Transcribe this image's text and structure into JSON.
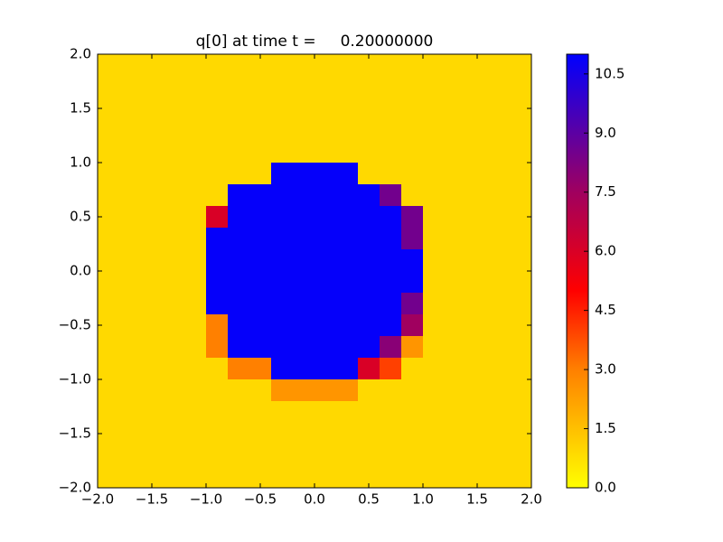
{
  "chart_data": {
    "type": "heatmap",
    "title": "q[0] at time t =     0.20000000",
    "xlim": [
      -2.0,
      2.0
    ],
    "ylim": [
      -2.0,
      2.0
    ],
    "xticks": [
      {
        "value": -2.0,
        "label": "−2.0"
      },
      {
        "value": -1.5,
        "label": "−1.5"
      },
      {
        "value": -1.0,
        "label": "−1.0"
      },
      {
        "value": -0.5,
        "label": "−0.5"
      },
      {
        "value": 0.0,
        "label": "0.0"
      },
      {
        "value": 0.5,
        "label": "0.5"
      },
      {
        "value": 1.0,
        "label": "1.0"
      },
      {
        "value": 1.5,
        "label": "1.5"
      },
      {
        "value": 2.0,
        "label": "2.0"
      }
    ],
    "yticks": [
      {
        "value": -2.0,
        "label": "−2.0"
      },
      {
        "value": -1.5,
        "label": "−1.5"
      },
      {
        "value": -1.0,
        "label": "−1.0"
      },
      {
        "value": -0.5,
        "label": "−0.5"
      },
      {
        "value": 0.0,
        "label": "0.0"
      },
      {
        "value": 0.5,
        "label": "0.5"
      },
      {
        "value": 1.0,
        "label": "1.0"
      },
      {
        "value": 1.5,
        "label": "1.5"
      },
      {
        "value": 2.0,
        "label": "2.0"
      }
    ],
    "clim": [
      0,
      11
    ],
    "cticks": [
      {
        "value": 0.0,
        "label": "0.0"
      },
      {
        "value": 1.5,
        "label": "1.5"
      },
      {
        "value": 3.0,
        "label": "3.0"
      },
      {
        "value": 4.5,
        "label": "4.5"
      },
      {
        "value": 6.0,
        "label": "6.0"
      },
      {
        "value": 7.5,
        "label": "7.5"
      },
      {
        "value": 9.0,
        "label": "9.0"
      },
      {
        "value": 10.5,
        "label": "10.5"
      }
    ],
    "colormap": [
      {
        "value": 0,
        "color": "#ffff00"
      },
      {
        "value": 3,
        "color": "#ff8000"
      },
      {
        "value": 5,
        "color": "#ff0000"
      },
      {
        "value": 7.5,
        "color": "#a0005f"
      },
      {
        "value": 11,
        "color": "#0000ff"
      }
    ],
    "z": [
      [
        0.9,
        0.9,
        0.9,
        0.9,
        0.9,
        0.9,
        0.9,
        0.9,
        0.9,
        0.9,
        0.9,
        0.9,
        0.9,
        0.9,
        0.9,
        0.9,
        0.9,
        0.9,
        0.9,
        0.9
      ],
      [
        0.9,
        0.9,
        0.9,
        0.9,
        0.9,
        0.9,
        0.9,
        0.9,
        0.9,
        0.9,
        0.9,
        0.9,
        0.9,
        0.9,
        0.9,
        0.9,
        0.9,
        0.9,
        0.9,
        0.9
      ],
      [
        0.9,
        0.9,
        0.9,
        0.9,
        0.9,
        0.9,
        0.9,
        0.9,
        0.9,
        0.9,
        0.9,
        0.9,
        0.9,
        0.9,
        0.9,
        0.9,
        0.9,
        0.9,
        0.9,
        0.9
      ],
      [
        0.9,
        0.9,
        0.9,
        0.9,
        0.9,
        0.9,
        0.9,
        0.9,
        0.9,
        0.9,
        0.9,
        0.9,
        0.9,
        0.9,
        0.9,
        0.9,
        0.9,
        0.9,
        0.9,
        0.9
      ],
      [
        0.9,
        0.9,
        0.9,
        0.9,
        0.9,
        0.9,
        0.9,
        0.9,
        0.9,
        0.9,
        0.9,
        0.9,
        0.9,
        0.9,
        0.9,
        0.9,
        0.9,
        0.9,
        0.9,
        0.9
      ],
      [
        0.9,
        0.9,
        0.9,
        0.9,
        0.9,
        0.9,
        0.9,
        0.9,
        10.9,
        10.9,
        10.9,
        10.9,
        0.9,
        0.9,
        0.9,
        0.9,
        0.9,
        0.9,
        0.9,
        0.9
      ],
      [
        0.9,
        0.9,
        0.9,
        0.9,
        0.9,
        0.9,
        10.9,
        10.9,
        10.9,
        10.9,
        10.9,
        10.9,
        10.9,
        8.5,
        0.9,
        0.9,
        0.9,
        0.9,
        0.9,
        0.9
      ],
      [
        0.9,
        0.9,
        0.9,
        0.9,
        0.9,
        6,
        10.9,
        10.9,
        10.9,
        10.9,
        10.9,
        10.9,
        10.9,
        10.9,
        8.5,
        0.9,
        0.9,
        0.9,
        0.9,
        0.9
      ],
      [
        0.9,
        0.9,
        0.9,
        0.9,
        0.9,
        10.9,
        10.9,
        10.9,
        10.9,
        10.9,
        10.9,
        10.9,
        10.9,
        10.9,
        8.5,
        0.9,
        0.9,
        0.9,
        0.9,
        0.9
      ],
      [
        0.9,
        0.9,
        0.9,
        0.9,
        0.9,
        10.9,
        10.9,
        10.9,
        10.9,
        10.9,
        10.9,
        10.9,
        10.9,
        10.9,
        10.9,
        0.9,
        0.9,
        0.9,
        0.9,
        0.9
      ],
      [
        0.9,
        0.9,
        0.9,
        0.9,
        0.9,
        10.9,
        10.9,
        10.9,
        10.9,
        10.9,
        10.9,
        10.9,
        10.9,
        10.9,
        10.9,
        0.9,
        0.9,
        0.9,
        0.9,
        0.9
      ],
      [
        0.9,
        0.9,
        0.9,
        0.9,
        0.9,
        10.9,
        10.9,
        10.9,
        10.9,
        10.9,
        10.9,
        10.9,
        10.9,
        10.9,
        8.5,
        0.9,
        0.9,
        0.9,
        0.9,
        0.9
      ],
      [
        0.9,
        0.9,
        0.9,
        0.9,
        0.9,
        3,
        10.9,
        10.9,
        10.9,
        10.9,
        10.9,
        10.9,
        10.9,
        10.9,
        7.5,
        0.9,
        0.9,
        0.9,
        0.9,
        0.9
      ],
      [
        0.9,
        0.9,
        0.9,
        0.9,
        0.9,
        3,
        10.9,
        10.9,
        10.9,
        10.9,
        10.9,
        10.9,
        10.9,
        8,
        2.5,
        0.9,
        0.9,
        0.9,
        0.9,
        0.9
      ],
      [
        0.9,
        0.9,
        0.9,
        0.9,
        0.9,
        0.9,
        3,
        3,
        10.9,
        10.9,
        10.9,
        10.9,
        6,
        4,
        0.9,
        0.9,
        0.9,
        0.9,
        0.9,
        0.9
      ],
      [
        0.9,
        0.9,
        0.9,
        0.9,
        0.9,
        0.9,
        0.9,
        0.9,
        2.5,
        2.5,
        2.5,
        2.5,
        0.9,
        0.9,
        0.9,
        0.9,
        0.9,
        0.9,
        0.9,
        0.9
      ],
      [
        0.9,
        0.9,
        0.9,
        0.9,
        0.9,
        0.9,
        0.9,
        0.9,
        0.9,
        0.9,
        0.9,
        0.9,
        0.9,
        0.9,
        0.9,
        0.9,
        0.9,
        0.9,
        0.9,
        0.9
      ],
      [
        0.9,
        0.9,
        0.9,
        0.9,
        0.9,
        0.9,
        0.9,
        0.9,
        0.9,
        0.9,
        0.9,
        0.9,
        0.9,
        0.9,
        0.9,
        0.9,
        0.9,
        0.9,
        0.9,
        0.9
      ],
      [
        0.9,
        0.9,
        0.9,
        0.9,
        0.9,
        0.9,
        0.9,
        0.9,
        0.9,
        0.9,
        0.9,
        0.9,
        0.9,
        0.9,
        0.9,
        0.9,
        0.9,
        0.9,
        0.9,
        0.9
      ],
      [
        0.9,
        0.9,
        0.9,
        0.9,
        0.9,
        0.9,
        0.9,
        0.9,
        0.9,
        0.9,
        0.9,
        0.9,
        0.9,
        0.9,
        0.9,
        0.9,
        0.9,
        0.9,
        0.9,
        0.9
      ]
    ]
  }
}
